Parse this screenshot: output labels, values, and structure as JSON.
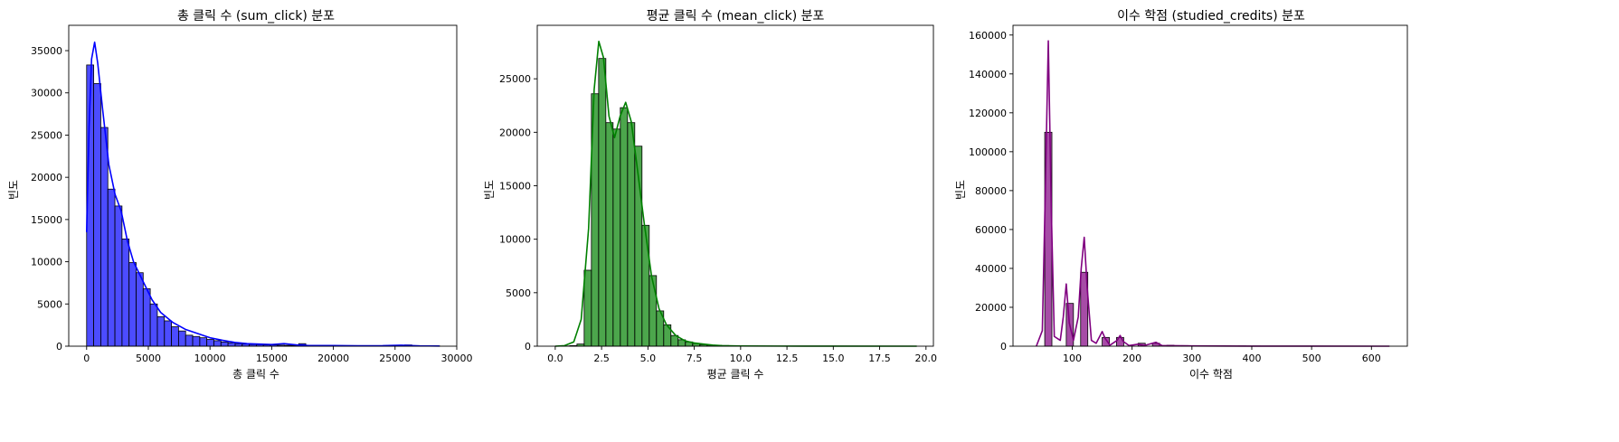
{
  "chart_data": [
    {
      "type": "bar",
      "title": "총 클릭 수 (sum_click) 분포",
      "xlabel": "총 클릭 수",
      "ylabel": "빈도",
      "color": "#0000ff",
      "kde": true,
      "xlim": [
        -1450,
        30000
      ],
      "ylim": [
        0,
        38000
      ],
      "xticks": [
        0,
        5000,
        10000,
        15000,
        20000,
        25000,
        30000
      ],
      "yticks": [
        0,
        5000,
        10000,
        15000,
        20000,
        25000,
        30000,
        35000
      ],
      "bin_start": 0,
      "bin_width": 573,
      "values": [
        33300,
        31100,
        25900,
        18600,
        16600,
        12700,
        9900,
        8700,
        6800,
        5000,
        3500,
        3000,
        2300,
        1800,
        1300,
        1150,
        1000,
        800,
        650,
        500,
        400,
        300,
        250,
        200,
        180,
        150,
        150,
        120,
        100,
        90,
        300,
        80,
        70,
        60,
        60,
        50,
        50,
        40,
        40,
        40,
        35,
        35,
        30,
        30,
        30,
        150,
        30,
        25,
        25,
        20
      ],
      "kde_points": [
        [
          0,
          13500
        ],
        [
          200,
          26000
        ],
        [
          400,
          34000
        ],
        [
          650,
          36000
        ],
        [
          900,
          33500
        ],
        [
          1300,
          28000
        ],
        [
          1800,
          21500
        ],
        [
          2300,
          18000
        ],
        [
          2800,
          16000
        ],
        [
          3300,
          12500
        ],
        [
          3800,
          10000
        ],
        [
          4300,
          8500
        ],
        [
          4800,
          7000
        ],
        [
          5300,
          5500
        ],
        [
          6000,
          4000
        ],
        [
          7000,
          2800
        ],
        [
          8000,
          2000
        ],
        [
          9000,
          1500
        ],
        [
          10000,
          1000
        ],
        [
          11000,
          700
        ],
        [
          12000,
          450
        ],
        [
          13000,
          300
        ],
        [
          14000,
          250
        ],
        [
          15000,
          200
        ],
        [
          16000,
          300
        ],
        [
          17000,
          150
        ],
        [
          18000,
          80
        ],
        [
          20000,
          80
        ],
        [
          22000,
          50
        ],
        [
          24000,
          60
        ],
        [
          25500,
          120
        ],
        [
          27000,
          40
        ],
        [
          28600,
          20
        ]
      ]
    },
    {
      "type": "bar",
      "title": "평균 클릭 수 (mean_click) 분포",
      "xlabel": "평균 클릭 수",
      "ylabel": "빈도",
      "color": "#008000",
      "kde": true,
      "xlim": [
        -0.97,
        20.4
      ],
      "ylim": [
        0,
        30000
      ],
      "xticks": [
        0.0,
        2.5,
        5.0,
        7.5,
        10.0,
        12.5,
        15.0,
        17.5,
        20.0
      ],
      "yticks": [
        0,
        5000,
        10000,
        15000,
        20000,
        25000
      ],
      "bin_start": 0,
      "bin_width": 0.39,
      "values": [
        10,
        20,
        50,
        200,
        7100,
        23600,
        26900,
        20900,
        20300,
        22300,
        20900,
        18700,
        11300,
        6600,
        3300,
        2000,
        1000,
        600,
        400,
        250,
        150,
        100,
        80,
        60,
        40,
        30,
        25,
        20,
        15,
        12,
        10,
        8,
        6,
        5,
        4,
        4,
        3,
        3,
        2,
        2,
        2,
        2,
        1,
        1,
        1,
        1,
        1,
        1,
        1,
        1
      ],
      "kde_points": [
        [
          0,
          0
        ],
        [
          0.5,
          50
        ],
        [
          1.0,
          400
        ],
        [
          1.4,
          2500
        ],
        [
          1.8,
          11000
        ],
        [
          2.1,
          24000
        ],
        [
          2.35,
          28500
        ],
        [
          2.6,
          27000
        ],
        [
          2.9,
          21500
        ],
        [
          3.2,
          19500
        ],
        [
          3.5,
          21500
        ],
        [
          3.8,
          22800
        ],
        [
          4.1,
          21000
        ],
        [
          4.4,
          17000
        ],
        [
          4.8,
          11500
        ],
        [
          5.2,
          6500
        ],
        [
          5.6,
          3500
        ],
        [
          6.0,
          2000
        ],
        [
          6.5,
          1000
        ],
        [
          7.0,
          500
        ],
        [
          7.5,
          300
        ],
        [
          8.0,
          200
        ],
        [
          8.5,
          100
        ],
        [
          9.0,
          50
        ],
        [
          10.0,
          20
        ],
        [
          12.0,
          10
        ],
        [
          15.0,
          5
        ],
        [
          19.5,
          0
        ]
      ]
    },
    {
      "type": "bar",
      "title": "이수 학점 (studied_credits) 분포",
      "xlabel": "이수 학점",
      "ylabel": "빈도",
      "color": "#800080",
      "kde": true,
      "xlim": [
        1,
        660
      ],
      "ylim": [
        0,
        165000
      ],
      "xticks": [
        100,
        200,
        300,
        400,
        500,
        600
      ],
      "yticks": [
        0,
        20000,
        40000,
        60000,
        80000,
        100000,
        120000,
        140000,
        160000
      ],
      "bin_start": 30,
      "bin_width": 12,
      "values": [
        0,
        0,
        110000,
        0,
        0,
        22000,
        0,
        38000,
        0,
        0,
        4500,
        0,
        4500,
        0,
        0,
        1500,
        0,
        1500,
        0,
        500,
        0,
        300,
        0,
        200,
        0,
        150,
        0,
        100,
        0,
        100,
        0,
        80,
        0,
        50,
        0,
        50,
        0,
        40,
        0,
        30,
        0,
        30,
        0,
        20,
        0,
        20,
        0,
        10,
        0,
        10
      ],
      "kde_points": [
        [
          40,
          0
        ],
        [
          50,
          8000
        ],
        [
          55,
          80000
        ],
        [
          60,
          157000
        ],
        [
          65,
          70000
        ],
        [
          70,
          5000
        ],
        [
          80,
          3000
        ],
        [
          85,
          15000
        ],
        [
          90,
          32000
        ],
        [
          95,
          12000
        ],
        [
          102,
          3000
        ],
        [
          110,
          15000
        ],
        [
          115,
          40000
        ],
        [
          120,
          56000
        ],
        [
          125,
          30000
        ],
        [
          132,
          3000
        ],
        [
          140,
          1500
        ],
        [
          150,
          7500
        ],
        [
          155,
          4000
        ],
        [
          163,
          500
        ],
        [
          175,
          3000
        ],
        [
          180,
          5500
        ],
        [
          185,
          2500
        ],
        [
          195,
          300
        ],
        [
          210,
          1000
        ],
        [
          220,
          300
        ],
        [
          240,
          2000
        ],
        [
          250,
          300
        ],
        [
          300,
          150
        ],
        [
          400,
          50
        ],
        [
          500,
          30
        ],
        [
          630,
          0
        ]
      ]
    }
  ]
}
